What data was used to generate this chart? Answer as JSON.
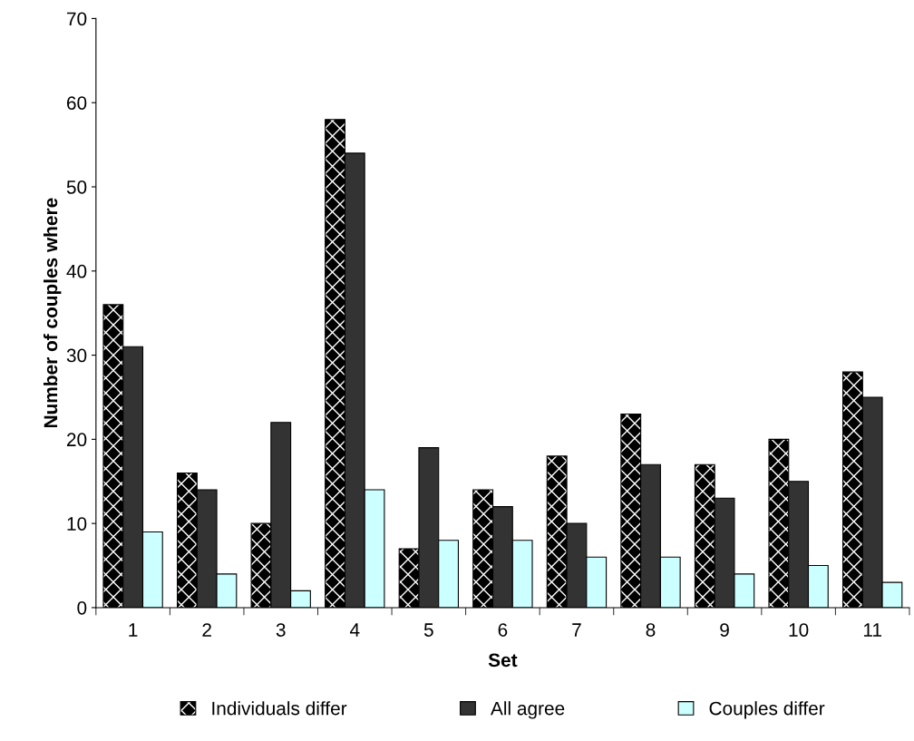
{
  "chart_data": {
    "type": "bar",
    "xlabel": "Set",
    "ylabel": "Number of couples where",
    "categories": [
      "1",
      "2",
      "3",
      "4",
      "5",
      "6",
      "7",
      "8",
      "9",
      "10",
      "11"
    ],
    "series": [
      {
        "name": "Individuals differ",
        "color": "#000000",
        "values": [
          36,
          16,
          10,
          58,
          7,
          14,
          18,
          23,
          17,
          20,
          28
        ]
      },
      {
        "name": "All agree",
        "color": "#333333",
        "values": [
          31,
          14,
          22,
          54,
          19,
          12,
          10,
          17,
          13,
          15,
          25
        ]
      },
      {
        "name": "Couples differ",
        "color": "#ccffff",
        "values": [
          9,
          4,
          2,
          14,
          8,
          8,
          6,
          6,
          4,
          5,
          3
        ]
      }
    ],
    "ylim": [
      0,
      70
    ],
    "yticks": [
      0,
      10,
      20,
      30,
      40,
      50,
      60,
      70
    ],
    "grid": false,
    "legend": "bottom"
  }
}
